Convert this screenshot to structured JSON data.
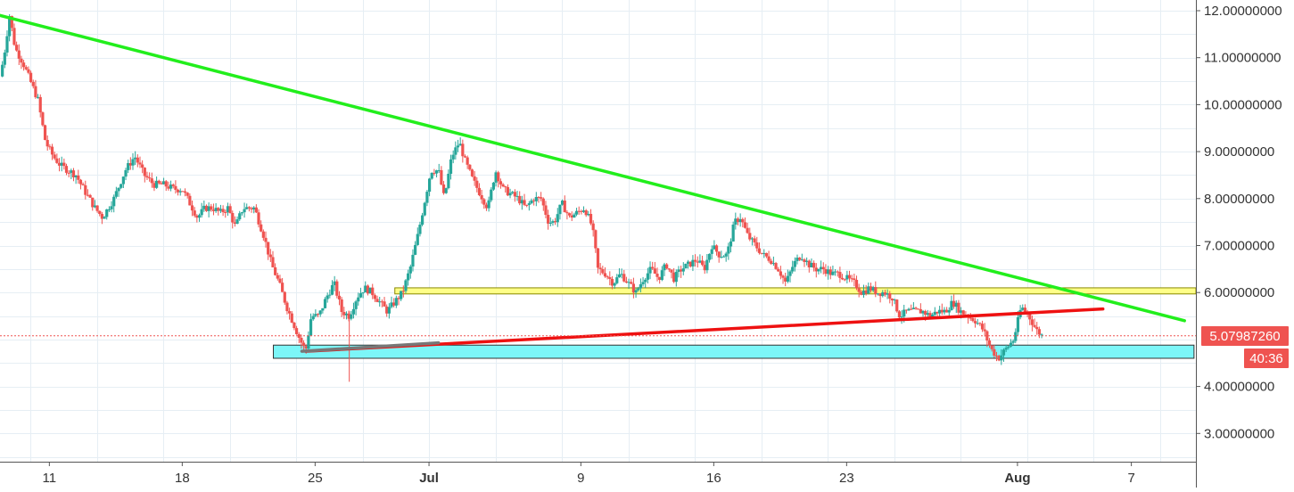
{
  "chart_data": {
    "type": "candlestick",
    "title": "",
    "xlabel": "",
    "ylabel": "",
    "ylim": [
      2.4,
      12.2
    ],
    "grid": true,
    "x_ticks": [
      {
        "label": "11",
        "day": 11
      },
      {
        "label": "18",
        "day": 18
      },
      {
        "label": "25",
        "day": 25
      },
      {
        "label": "Jul",
        "day": 31
      },
      {
        "label": "9",
        "day": 39
      },
      {
        "label": "16",
        "day": 46
      },
      {
        "label": "23",
        "day": 53
      },
      {
        "label": "Aug",
        "day": 62
      },
      {
        "label": "7",
        "day": 68
      }
    ],
    "y_ticks": [
      "3.00000000",
      "4.00000000",
      "6.00000000",
      "7.00000000",
      "8.00000000",
      "9.00000000",
      "10.00000000",
      "11.00000000",
      "12.00000000"
    ],
    "y_tick_values": [
      3,
      4,
      6,
      7,
      8,
      9,
      10,
      11,
      12
    ],
    "x_range_days": [
      8.4,
      71.4
    ],
    "price_path": [
      [
        8.4,
        10.6
      ],
      [
        8.6,
        11.0
      ],
      [
        8.9,
        11.9
      ],
      [
        9.2,
        11.2
      ],
      [
        9.6,
        10.9
      ],
      [
        10.0,
        10.5
      ],
      [
        10.4,
        10.1
      ],
      [
        10.8,
        9.2
      ],
      [
        11.2,
        8.9
      ],
      [
        11.6,
        8.7
      ],
      [
        12.0,
        8.6
      ],
      [
        12.4,
        8.5
      ],
      [
        12.8,
        8.2
      ],
      [
        13.4,
        7.8
      ],
      [
        13.8,
        7.6
      ],
      [
        14.4,
        8.0
      ],
      [
        15.0,
        8.6
      ],
      [
        15.5,
        8.9
      ],
      [
        16.0,
        8.5
      ],
      [
        16.5,
        8.3
      ],
      [
        17.0,
        8.3
      ],
      [
        17.6,
        8.2
      ],
      [
        18.0,
        8.2
      ],
      [
        18.4,
        7.9
      ],
      [
        18.8,
        7.6
      ],
      [
        19.2,
        7.8
      ],
      [
        19.6,
        7.8
      ],
      [
        20.0,
        7.7
      ],
      [
        20.4,
        7.8
      ],
      [
        20.8,
        7.4
      ],
      [
        21.2,
        7.8
      ],
      [
        21.8,
        7.8
      ],
      [
        22.3,
        7.2
      ],
      [
        22.7,
        6.6
      ],
      [
        23.1,
        6.2
      ],
      [
        23.5,
        5.7
      ],
      [
        23.9,
        5.3
      ],
      [
        24.2,
        5.0
      ],
      [
        24.5,
        4.75
      ],
      [
        24.8,
        5.5
      ],
      [
        25.2,
        5.5
      ],
      [
        25.6,
        5.9
      ],
      [
        26.0,
        6.2
      ],
      [
        26.4,
        5.6
      ],
      [
        26.8,
        5.5
      ],
      [
        27.2,
        5.9
      ],
      [
        27.6,
        6.1
      ],
      [
        28.0,
        6.0
      ],
      [
        28.4,
        5.8
      ],
      [
        28.8,
        5.6
      ],
      [
        29.2,
        5.8
      ],
      [
        29.6,
        6.0
      ],
      [
        30.0,
        6.5
      ],
      [
        30.4,
        7.2
      ],
      [
        30.7,
        7.8
      ],
      [
        31.1,
        8.6
      ],
      [
        31.5,
        8.6
      ],
      [
        31.8,
        8.0
      ],
      [
        32.2,
        8.9
      ],
      [
        32.6,
        9.2
      ],
      [
        32.9,
        8.8
      ],
      [
        33.3,
        8.4
      ],
      [
        33.7,
        8.1
      ],
      [
        34.1,
        7.8
      ],
      [
        34.5,
        8.6
      ],
      [
        34.9,
        8.2
      ],
      [
        35.3,
        8.1
      ],
      [
        35.7,
        8.0
      ],
      [
        36.1,
        7.8
      ],
      [
        36.5,
        8.0
      ],
      [
        36.9,
        8.0
      ],
      [
        37.3,
        7.5
      ],
      [
        37.6,
        7.5
      ],
      [
        38.0,
        7.9
      ],
      [
        38.4,
        7.6
      ],
      [
        38.8,
        7.7
      ],
      [
        39.2,
        7.8
      ],
      [
        39.6,
        7.4
      ],
      [
        39.9,
        6.5
      ],
      [
        40.3,
        6.4
      ],
      [
        40.7,
        6.2
      ],
      [
        41.1,
        6.4
      ],
      [
        41.5,
        6.2
      ],
      [
        41.9,
        6.0
      ],
      [
        42.3,
        6.3
      ],
      [
        42.7,
        6.5
      ],
      [
        43.1,
        6.3
      ],
      [
        43.5,
        6.6
      ],
      [
        43.9,
        6.3
      ],
      [
        44.3,
        6.5
      ],
      [
        44.7,
        6.6
      ],
      [
        45.1,
        6.7
      ],
      [
        45.5,
        6.5
      ],
      [
        45.9,
        7.0
      ],
      [
        46.3,
        6.8
      ],
      [
        46.7,
        6.8
      ],
      [
        47.1,
        7.5
      ],
      [
        47.4,
        7.6
      ],
      [
        47.8,
        7.2
      ],
      [
        48.2,
        7.0
      ],
      [
        48.6,
        6.8
      ],
      [
        49.0,
        6.7
      ],
      [
        49.4,
        6.5
      ],
      [
        49.8,
        6.2
      ],
      [
        50.2,
        6.6
      ],
      [
        50.6,
        6.8
      ],
      [
        51.0,
        6.6
      ],
      [
        51.4,
        6.5
      ],
      [
        51.8,
        6.5
      ],
      [
        52.2,
        6.4
      ],
      [
        52.6,
        6.4
      ],
      [
        53.0,
        6.3
      ],
      [
        53.4,
        6.2
      ],
      [
        53.8,
        6.0
      ],
      [
        54.2,
        6.1
      ],
      [
        54.6,
        6.0
      ],
      [
        55.0,
        6.0
      ],
      [
        55.4,
        5.9
      ],
      [
        55.8,
        5.5
      ],
      [
        56.2,
        5.6
      ],
      [
        56.6,
        5.6
      ],
      [
        57.0,
        5.6
      ],
      [
        57.4,
        5.5
      ],
      [
        57.8,
        5.6
      ],
      [
        58.2,
        5.6
      ],
      [
        58.6,
        5.8
      ],
      [
        59.0,
        5.6
      ],
      [
        59.4,
        5.5
      ],
      [
        59.8,
        5.4
      ],
      [
        60.2,
        5.2
      ],
      [
        60.6,
        4.8
      ],
      [
        61.0,
        4.6
      ],
      [
        61.4,
        4.8
      ],
      [
        61.8,
        5.0
      ],
      [
        62.2,
        5.7
      ],
      [
        62.6,
        5.5
      ],
      [
        63.0,
        5.2
      ],
      [
        63.3,
        5.08
      ]
    ],
    "current_price": "5.07987260",
    "current_price_value": 5.0799,
    "countdown": "40:36",
    "annotations": [
      {
        "kind": "trendline",
        "color": "#22ee1c",
        "points": [
          [
            8.4,
            11.9
          ],
          [
            70.8,
            5.4
          ]
        ]
      },
      {
        "kind": "trendline",
        "color": "#ee1111",
        "points": [
          [
            24.5,
            4.75
          ],
          [
            66.5,
            5.65
          ]
        ]
      },
      {
        "kind": "trendline",
        "color": "#777777",
        "points": [
          [
            24.3,
            4.75
          ],
          [
            31.5,
            4.93
          ]
        ]
      },
      {
        "kind": "zone",
        "color": "#ffff88",
        "border": "#888800",
        "x": [
          29.2,
          71.4
        ],
        "y": [
          5.97,
          6.1
        ]
      },
      {
        "kind": "zone",
        "color": "#7cf6f8",
        "border": "#333333",
        "x": [
          22.8,
          71.3
        ],
        "y": [
          4.6,
          4.88
        ]
      }
    ],
    "colors": {
      "up": "#26a69a",
      "down": "#ef5350",
      "grid": "#e6eef4",
      "axis_text": "#333333",
      "price_line": "#ef5350",
      "price_tag_bg": "#ef5350",
      "price_tag_text": "#ffffff"
    }
  }
}
